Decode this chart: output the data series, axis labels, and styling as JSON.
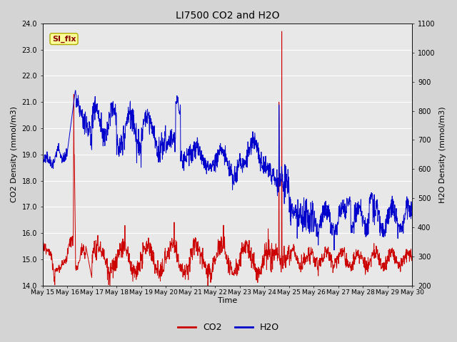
{
  "title": "LI7500 CO2 and H2O",
  "xlabel": "Time",
  "ylabel_left": "CO2 Density (mmol/m3)",
  "ylabel_right": "H2O Density (mmol/m3)",
  "ylim_left": [
    14.0,
    24.0
  ],
  "ylim_right": [
    200,
    1100
  ],
  "co2_color": "#cc0000",
  "h2o_color": "#0000cc",
  "legend_label_co2": "CO2",
  "legend_label_h2o": "H2O",
  "annotation_text": "SI_flx",
  "annotation_bg": "#ffff99",
  "annotation_border": "#aaaa00",
  "fig_bg_color": "#d4d4d4",
  "plot_bg_color": "#e8e8e8",
  "grid_color": "#ffffff",
  "x_tick_labels": [
    "May 15",
    "May 16",
    "May 17",
    "May 18",
    "May 19",
    "May 20",
    "May 21",
    "May 22",
    "May 23",
    "May 24",
    "May 25",
    "May 26",
    "May 27",
    "May 28",
    "May 29",
    "May 30"
  ],
  "yticks_left": [
    14.0,
    15.0,
    16.0,
    17.0,
    18.0,
    19.0,
    20.0,
    21.0,
    22.0,
    23.0,
    24.0
  ],
  "yticks_right": [
    200,
    300,
    400,
    500,
    600,
    700,
    800,
    900,
    1000,
    1100
  ],
  "n_days": 15,
  "ppd": 96
}
